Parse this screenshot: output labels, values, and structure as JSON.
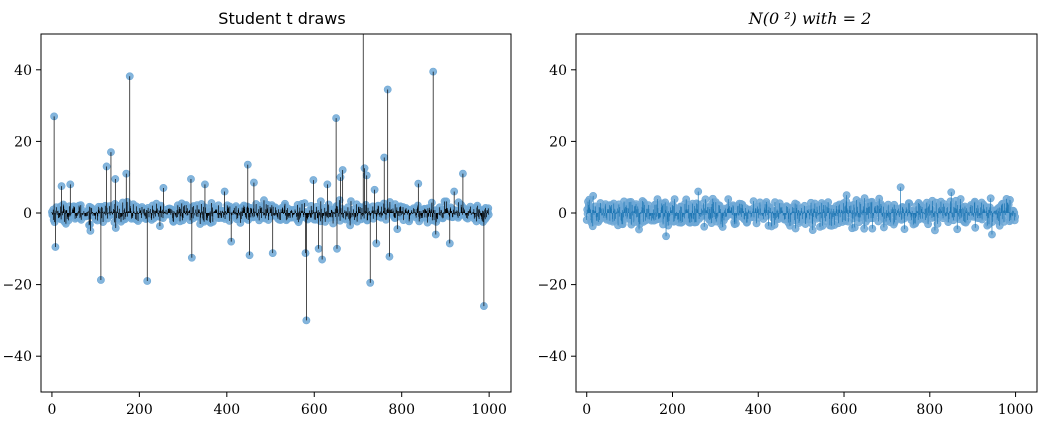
{
  "chart_data": [
    {
      "type": "scatter",
      "title": "Student t draws",
      "xlim": [
        -25,
        1050
      ],
      "ylim": [
        -50,
        50
      ],
      "xticks": [
        0,
        200,
        400,
        600,
        800,
        1000
      ],
      "yticks": [
        40,
        20,
        0,
        -20,
        -40
      ],
      "xtick_labels": [
        "0",
        "200",
        "400",
        "600",
        "800",
        "1000"
      ],
      "ytick_labels": [
        "40",
        "20",
        "0",
        "−20",
        "−40"
      ],
      "n_points": 1000,
      "typical_range": [
        -4.5,
        4.5
      ],
      "marker_color": "#6fa8d6",
      "stem_color": "#000000",
      "outliers": [
        {
          "x": 5,
          "y": 27
        },
        {
          "x": 8,
          "y": -9.5
        },
        {
          "x": 22,
          "y": 7.5
        },
        {
          "x": 42,
          "y": 8
        },
        {
          "x": 88,
          "y": -5
        },
        {
          "x": 112,
          "y": -18.7
        },
        {
          "x": 125,
          "y": 13
        },
        {
          "x": 135,
          "y": 17
        },
        {
          "x": 145,
          "y": 9.5
        },
        {
          "x": 170,
          "y": 11
        },
        {
          "x": 178,
          "y": 38.2
        },
        {
          "x": 218,
          "y": -19
        },
        {
          "x": 255,
          "y": 7
        },
        {
          "x": 318,
          "y": 9.5
        },
        {
          "x": 320,
          "y": -9
        },
        {
          "x": 320,
          "y": -12.5
        },
        {
          "x": 350,
          "y": 8
        },
        {
          "x": 395,
          "y": 6
        },
        {
          "x": 410,
          "y": -8
        },
        {
          "x": 448,
          "y": 13.5
        },
        {
          "x": 452,
          "y": -11.8
        },
        {
          "x": 462,
          "y": 8.5
        },
        {
          "x": 505,
          "y": -11.2
        },
        {
          "x": 580,
          "y": -11.2
        },
        {
          "x": 582,
          "y": -30
        },
        {
          "x": 598,
          "y": 9.2
        },
        {
          "x": 610,
          "y": -10
        },
        {
          "x": 618,
          "y": -13
        },
        {
          "x": 630,
          "y": 8
        },
        {
          "x": 650,
          "y": 26.5
        },
        {
          "x": 652,
          "y": -10
        },
        {
          "x": 660,
          "y": 10
        },
        {
          "x": 665,
          "y": 12
        },
        {
          "x": 712,
          "y": 51
        },
        {
          "x": 715,
          "y": 12.5
        },
        {
          "x": 720,
          "y": 10.5
        },
        {
          "x": 728,
          "y": -19.5
        },
        {
          "x": 738,
          "y": 6.5
        },
        {
          "x": 742,
          "y": -8.5
        },
        {
          "x": 760,
          "y": 15.5
        },
        {
          "x": 768,
          "y": 34.5
        },
        {
          "x": 772,
          "y": -12.2
        },
        {
          "x": 790,
          "y": -4.5
        },
        {
          "x": 838,
          "y": 8.2
        },
        {
          "x": 872,
          "y": 39.5
        },
        {
          "x": 878,
          "y": -6
        },
        {
          "x": 910,
          "y": -8.5
        },
        {
          "x": 920,
          "y": 6
        },
        {
          "x": 940,
          "y": 11
        },
        {
          "x": 988,
          "y": -26
        }
      ]
    },
    {
      "type": "scatter",
      "title": "N(0   ²) with    = 2",
      "xlim": [
        -25,
        1050
      ],
      "ylim": [
        -50,
        50
      ],
      "xticks": [
        0,
        200,
        400,
        600,
        800,
        1000
      ],
      "yticks": [
        40,
        20,
        0,
        -20,
        -40
      ],
      "xtick_labels": [
        "0",
        "200",
        "400",
        "600",
        "800",
        "1000"
      ],
      "ytick_labels": [
        "40",
        "20",
        "0",
        "−20",
        "−40"
      ],
      "n_points": 1000,
      "typical_range": [
        -5,
        5
      ],
      "marker_color": "#6fa8d6",
      "stem_color": "#1f77b4",
      "outliers": [
        {
          "x": 185,
          "y": -6.5
        },
        {
          "x": 260,
          "y": 6
        },
        {
          "x": 732,
          "y": 7.2
        },
        {
          "x": 850,
          "y": 5.8
        },
        {
          "x": 945,
          "y": -6
        }
      ]
    }
  ]
}
